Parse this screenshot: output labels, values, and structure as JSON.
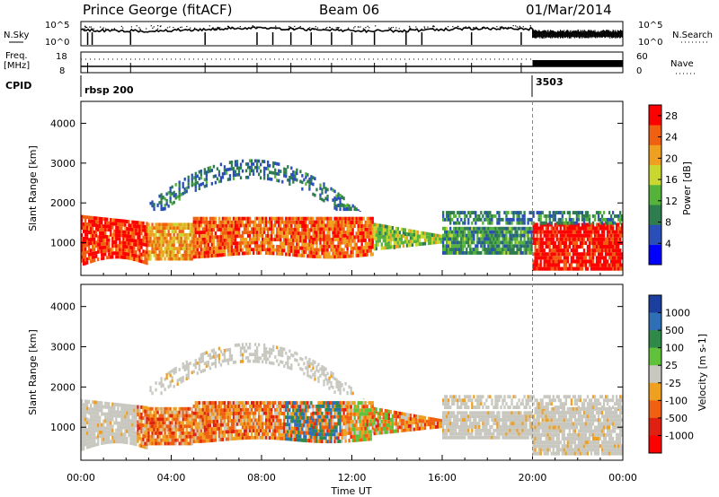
{
  "header": {
    "station": "Prince George (fitACF)",
    "beam": "Beam 06",
    "date": "01/Mar/2014"
  },
  "status": {
    "nsky_label": "N.Sky",
    "nsearch_label": "N.Search",
    "freq_label": "Freq.",
    "freq_unit": "[MHz]",
    "nave_label": "Nave",
    "cpid_label": "CPID",
    "noise_ticks": [
      "10^5",
      "10^0"
    ],
    "freq_ticks": [
      "18",
      "8"
    ],
    "nave_ticks": [
      "60",
      "0"
    ],
    "cpid_segments": [
      {
        "label": "rbsp 200",
        "start_hour": 0
      },
      {
        "label": "3503",
        "start_hour": 20
      }
    ]
  },
  "chart_data": [
    {
      "type": "heatmap",
      "name": "power",
      "ylabel": "Slant Range [km]",
      "xlabel": "",
      "xlim": [
        0,
        24
      ],
      "ylim": [
        180,
        4550
      ],
      "yticks": [
        "1000",
        "2000",
        "3000",
        "4000"
      ],
      "colorbar": {
        "label": "Power [dB]",
        "ticks": [
          "4",
          "8",
          "12",
          "16",
          "20",
          "24",
          "28"
        ],
        "range": [
          0,
          30
        ],
        "colors": [
          "#0000ff",
          "#2a4fb8",
          "#2e7d4f",
          "#55b23a",
          "#c8d830",
          "#f0a020",
          "#f06010",
          "#ff0000"
        ]
      }
    },
    {
      "type": "heatmap",
      "name": "velocity",
      "ylabel": "Slant Range [km]",
      "xlabel": "Time UT",
      "xlim": [
        0,
        24
      ],
      "ylim": [
        180,
        4550
      ],
      "xticks": [
        "00:00",
        "04:00",
        "08:00",
        "12:00",
        "16:00",
        "20:00",
        "00:00"
      ],
      "yticks": [
        "1000",
        "2000",
        "3000",
        "4000"
      ],
      "colorbar": {
        "label": "Velocity [m s-1]",
        "ticks": [
          "1000",
          "500",
          "100",
          "25",
          "-25",
          "-100",
          "-500",
          "-1000"
        ],
        "colors": [
          "#1a3f9e",
          "#2f6fb5",
          "#2f8a4a",
          "#5fc23a",
          "#c8c8c0",
          "#f0a020",
          "#f06010",
          "#e02010",
          "#ff0000"
        ]
      }
    }
  ]
}
